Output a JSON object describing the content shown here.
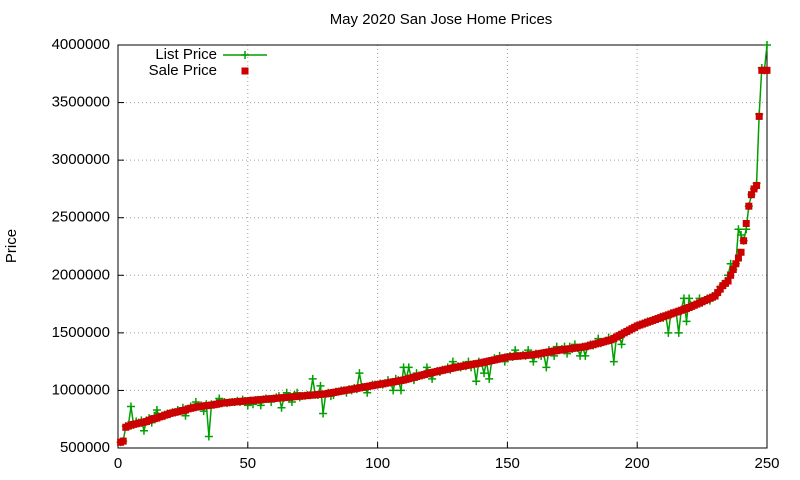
{
  "chart_data": {
    "type": "scatter",
    "title": "May 2020 San Jose Home Prices",
    "y_label": "Price",
    "xlim": [
      0,
      250
    ],
    "xticks": [
      0,
      50,
      100,
      150,
      200,
      250
    ],
    "ylim": [
      500000,
      4000000
    ],
    "yticks": [
      500000,
      1000000,
      1500000,
      2000000,
      2500000,
      3000000,
      3500000,
      4000000
    ],
    "grid": true,
    "legend": "top-left",
    "x": [
      1,
      2,
      3,
      4,
      5,
      6,
      7,
      8,
      9,
      10,
      11,
      12,
      13,
      14,
      15,
      16,
      17,
      18,
      19,
      20,
      21,
      22,
      23,
      24,
      25,
      26,
      27,
      28,
      29,
      30,
      31,
      32,
      33,
      34,
      35,
      36,
      37,
      38,
      39,
      40,
      41,
      42,
      43,
      44,
      45,
      46,
      47,
      48,
      49,
      50,
      51,
      52,
      53,
      54,
      55,
      56,
      57,
      58,
      59,
      60,
      61,
      62,
      63,
      64,
      65,
      66,
      67,
      68,
      69,
      70,
      71,
      72,
      73,
      74,
      75,
      76,
      77,
      78,
      79,
      80,
      81,
      82,
      83,
      84,
      85,
      86,
      87,
      88,
      89,
      90,
      91,
      92,
      93,
      94,
      95,
      96,
      97,
      98,
      99,
      100,
      101,
      102,
      103,
      104,
      105,
      106,
      107,
      108,
      109,
      110,
      111,
      112,
      113,
      114,
      115,
      116,
      117,
      118,
      119,
      120,
      121,
      122,
      123,
      124,
      125,
      126,
      127,
      128,
      129,
      130,
      131,
      132,
      133,
      134,
      135,
      136,
      137,
      138,
      139,
      140,
      141,
      142,
      143,
      144,
      145,
      146,
      147,
      148,
      149,
      150,
      151,
      152,
      153,
      154,
      155,
      156,
      157,
      158,
      159,
      160,
      161,
      162,
      163,
      164,
      165,
      166,
      167,
      168,
      169,
      170,
      171,
      172,
      173,
      174,
      175,
      176,
      177,
      178,
      179,
      180,
      181,
      182,
      183,
      184,
      185,
      186,
      187,
      188,
      189,
      190,
      191,
      192,
      193,
      194,
      195,
      196,
      197,
      198,
      199,
      200,
      201,
      202,
      203,
      204,
      205,
      206,
      207,
      208,
      209,
      210,
      211,
      212,
      213,
      214,
      215,
      216,
      217,
      218,
      219,
      220,
      221,
      222,
      223,
      224,
      225,
      226,
      227,
      228,
      229,
      230,
      231,
      232,
      233,
      234,
      235,
      236,
      237,
      238,
      239,
      240,
      241,
      242,
      243,
      244,
      245,
      246,
      247,
      248,
      249,
      250
    ],
    "series": [
      {
        "name": "List Price",
        "color": "#00a000",
        "mode": "linespoints",
        "values": [
          550000,
          560000,
          690000,
          700000,
          860000,
          700000,
          730000,
          720000,
          740000,
          650000,
          740000,
          760000,
          720000,
          780000,
          830000,
          770000,
          780000,
          790000,
          800000,
          800000,
          810000,
          810000,
          830000,
          820000,
          850000,
          780000,
          840000,
          860000,
          850000,
          900000,
          860000,
          870000,
          820000,
          880000,
          600000,
          880000,
          876000,
          900000,
          930000,
          890000,
          900000,
          890000,
          896000,
          900000,
          900000,
          910000,
          900000,
          920000,
          908000,
          870000,
          912000,
          880000,
          916000,
          918000,
          870000,
          922000,
          930000,
          926000,
          900000,
          930000,
          940000,
          950000,
          850000,
          938000,
          980000,
          940000,
          900000,
          960000,
          980000,
          940000,
          950000,
          954000,
          960000,
          958000,
          1100000,
          962000,
          960000,
          1040000,
          800000,
          970000,
          980000,
          950000,
          960000,
          990000,
          990000,
          1000000,
          1000000,
          980000,
          1010000,
          1000000,
          1020000,
          1010000,
          1150000,
          1030000,
          1030000,
          980000,
          1040000,
          1050000,
          1050000,
          1050000,
          1060000,
          1050000,
          1060000,
          1090000,
          1070000,
          1000000,
          1100000,
          1090000,
          1000000,
          1200000,
          1100000,
          1200000,
          1110000,
          1090000,
          1150000,
          1130000,
          1130000,
          1140000,
          1200000,
          1150000,
          1100000,
          1160000,
          1170000,
          1160000,
          1180000,
          1180000,
          1200000,
          1180000,
          1250000,
          1200000,
          1210000,
          1200000,
          1220000,
          1210000,
          1250000,
          1200000,
          1230000,
          1080000,
          1250000,
          1240000,
          1150000,
          1250000,
          1100000,
          1260000,
          1280000,
          1270000,
          1300000,
          1280000,
          1250000,
          1290000,
          1300000,
          1290000,
          1350000,
          1300000,
          1300000,
          1310000,
          1300000,
          1350000,
          1310000,
          1250000,
          1320000,
          1310000,
          1300000,
          1320000,
          1200000,
          1350000,
          1330000,
          1300000,
          1380000,
          1350000,
          1360000,
          1380000,
          1320000,
          1380000,
          1360000,
          1400000,
          1370000,
          1300000,
          1380000,
          1300000,
          1390000,
          1400000,
          1390000,
          1400000,
          1450000,
          1410000,
          1420000,
          1430000,
          1460000,
          1440000,
          1250000,
          1460000,
          1480000,
          1400000,
          1500000,
          1510000,
          1530000,
          1530000,
          1550000,
          1550000,
          1570000,
          1580000,
          1590000,
          1600000,
          1600000,
          1610000,
          1620000,
          1620000,
          1640000,
          1630000,
          1650000,
          1500000,
          1670000,
          1670000,
          1680000,
          1500000,
          1700000,
          1800000,
          1600000,
          1800000,
          1730000,
          1740000,
          1750000,
          1800000,
          1760000,
          1780000,
          1800000,
          1780000,
          1820000,
          1820000,
          1850000,
          1900000,
          1920000,
          1950000,
          2000000,
          2100000,
          2050000,
          2100000,
          2400000,
          2350000,
          2300000,
          2400000,
          2600000,
          2700000,
          2750000,
          2800000,
          3400000,
          3800000,
          3780000,
          4000000
        ]
      },
      {
        "name": "Sale Price",
        "color": "#cc0000",
        "mode": "points",
        "values": [
          550000,
          560000,
          680000,
          690000,
          700000,
          705000,
          710000,
          715000,
          720000,
          725000,
          730000,
          740000,
          750000,
          755000,
          760000,
          770000,
          775000,
          785000,
          790000,
          800000,
          805000,
          810000,
          815000,
          820000,
          825000,
          830000,
          840000,
          845000,
          850000,
          855000,
          860000,
          862000,
          865000,
          868000,
          870000,
          873000,
          876000,
          880000,
          885000,
          890000,
          892000,
          894000,
          896000,
          898000,
          900000,
          902000,
          904000,
          906000,
          908000,
          910000,
          912000,
          914000,
          916000,
          918000,
          920000,
          922000,
          924000,
          926000,
          928000,
          930000,
          932000,
          934000,
          936000,
          938000,
          940000,
          942000,
          944000,
          946000,
          948000,
          950000,
          952000,
          954000,
          956000,
          958000,
          960000,
          962000,
          964000,
          966000,
          968000,
          970000,
          974000,
          978000,
          982000,
          986000,
          990000,
          994000,
          998000,
          1002000,
          1006000,
          1010000,
          1014000,
          1018000,
          1022000,
          1026000,
          1030000,
          1034000,
          1038000,
          1042000,
          1046000,
          1050000,
          1054000,
          1058000,
          1062000,
          1066000,
          1070000,
          1074000,
          1078000,
          1082000,
          1086000,
          1090000,
          1096000,
          1102000,
          1108000,
          1114000,
          1120000,
          1126000,
          1132000,
          1138000,
          1144000,
          1150000,
          1155000,
          1160000,
          1165000,
          1170000,
          1175000,
          1180000,
          1185000,
          1190000,
          1195000,
          1200000,
          1204000,
          1208000,
          1212000,
          1216000,
          1220000,
          1224000,
          1228000,
          1232000,
          1236000,
          1240000,
          1245000,
          1250000,
          1255000,
          1260000,
          1265000,
          1270000,
          1275000,
          1280000,
          1285000,
          1290000,
          1292000,
          1294000,
          1296000,
          1298000,
          1300000,
          1302000,
          1304000,
          1306000,
          1308000,
          1310000,
          1314000,
          1318000,
          1322000,
          1326000,
          1330000,
          1334000,
          1338000,
          1342000,
          1346000,
          1350000,
          1353000,
          1356000,
          1359000,
          1362000,
          1365000,
          1368000,
          1371000,
          1374000,
          1377000,
          1380000,
          1386000,
          1392000,
          1398000,
          1404000,
          1410000,
          1416000,
          1422000,
          1428000,
          1434000,
          1440000,
          1452000,
          1464000,
          1476000,
          1488000,
          1500000,
          1512000,
          1524000,
          1536000,
          1548000,
          1560000,
          1568000,
          1576000,
          1584000,
          1592000,
          1600000,
          1608000,
          1616000,
          1624000,
          1632000,
          1640000,
          1648000,
          1656000,
          1664000,
          1672000,
          1680000,
          1688000,
          1696000,
          1704000,
          1712000,
          1720000,
          1730000,
          1740000,
          1750000,
          1760000,
          1770000,
          1780000,
          1790000,
          1800000,
          1810000,
          1820000,
          1850000,
          1880000,
          1910000,
          1930000,
          1950000,
          2000000,
          2050000,
          2100000,
          2150000,
          2200000,
          2300000,
          2450000,
          2600000,
          2700000,
          2750000,
          2780000,
          3380000,
          3780000,
          3780000,
          3780000
        ]
      }
    ]
  }
}
